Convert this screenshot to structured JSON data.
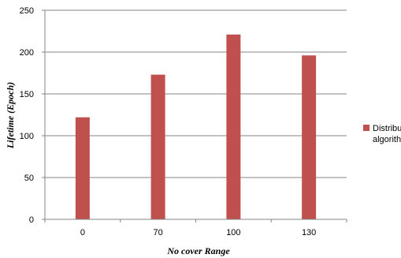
{
  "chart_data": {
    "type": "bar",
    "categories": [
      "0",
      "70",
      "100",
      "130"
    ],
    "series": [
      {
        "name": "Distribute algorithm",
        "values": [
          122,
          173,
          221,
          196
        ]
      }
    ],
    "xlabel": "No cover Range",
    "ylabel": "Lifetime (Epoch)",
    "ylim": [
      0,
      250
    ],
    "yticks": [
      "0",
      "50",
      "100",
      "150",
      "200",
      "250"
    ],
    "grid": true,
    "legend_position": "right",
    "bar_color": "#c0504d",
    "legend_lines": [
      "Distribute",
      "algorithm"
    ]
  }
}
